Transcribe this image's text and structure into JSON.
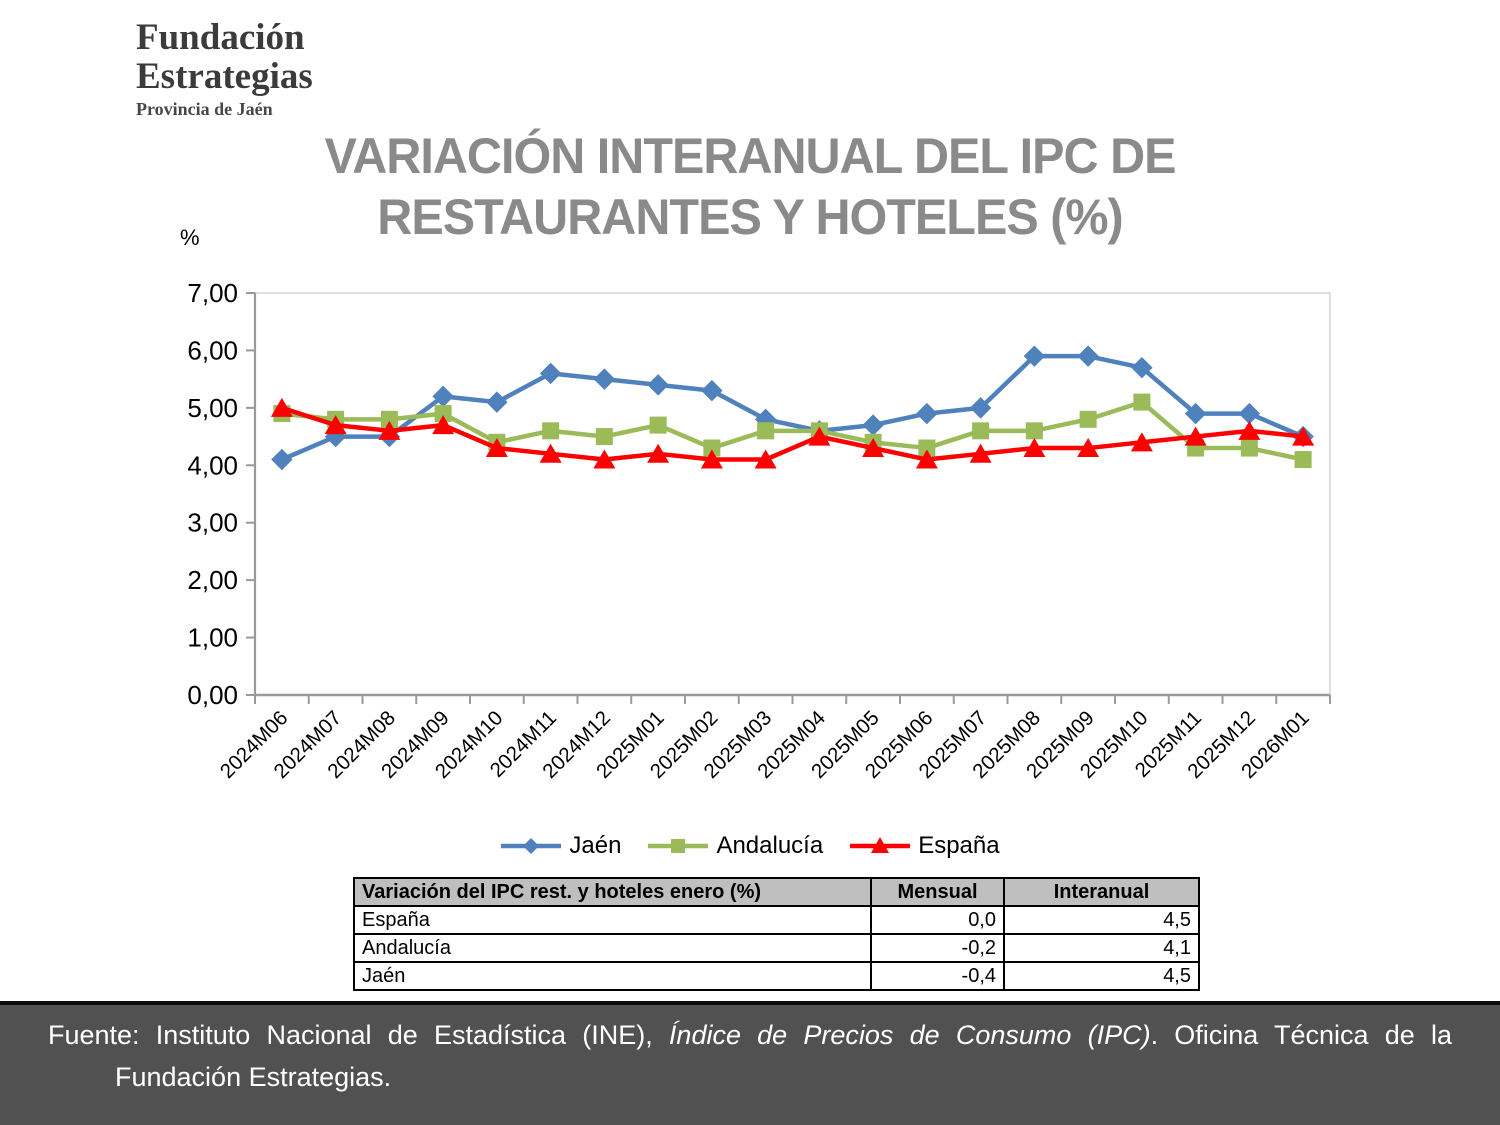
{
  "logo": {
    "line1": "Fundación",
    "line2": "Estrategias",
    "subtitle": "Provincia de Jaén",
    "colors": {
      "yellow": "#F2B113",
      "blue": "#1A5DA8",
      "teal": "#0C968E",
      "red": "#D7282F",
      "dark_red": "#BD2227",
      "purple": "#B7ABD5"
    }
  },
  "title": {
    "line1": "VARIACIÓN INTERANUAL DEL IPC DE",
    "line2": "RESTAURANTES Y HOTELES (%)"
  },
  "chart_data": {
    "type": "line",
    "title": "VARIACIÓN INTERANUAL DEL IPC DE RESTAURANTES Y HOTELES (%)",
    "ylabel": "%",
    "xlabel": "",
    "ylim": [
      0,
      7
    ],
    "y_ticks": [
      "7,00",
      "6,00",
      "5,00",
      "4,00",
      "3,00",
      "2,00",
      "1,00",
      "0,00"
    ],
    "grid": false,
    "legend_position": "bottom",
    "categories": [
      "2024M06",
      "2024M07",
      "2024M08",
      "2024M09",
      "2024M10",
      "2024M11",
      "2024M12",
      "2025M01",
      "2025M02",
      "2025M03",
      "2025M04",
      "2025M05",
      "2025M06",
      "2025M07",
      "2025M08",
      "2025M09",
      "2025M10",
      "2025M11",
      "2025M12",
      "2026M01"
    ],
    "series": [
      {
        "name": "Jaén",
        "color": "#4F81BD",
        "marker": "diamond",
        "values": [
          4.1,
          4.5,
          4.5,
          5.2,
          5.1,
          5.6,
          5.5,
          5.4,
          5.3,
          4.8,
          4.6,
          4.7,
          4.9,
          5.0,
          5.9,
          5.9,
          5.7,
          4.9,
          4.9,
          4.5
        ]
      },
      {
        "name": "Andalucía",
        "color": "#9BBB59",
        "marker": "square",
        "values": [
          4.9,
          4.8,
          4.8,
          4.9,
          4.4,
          4.6,
          4.5,
          4.7,
          4.3,
          4.6,
          4.6,
          4.4,
          4.3,
          4.6,
          4.6,
          4.8,
          5.1,
          4.3,
          4.3,
          4.1
        ]
      },
      {
        "name": "España",
        "color": "#FE0000",
        "marker": "triangle",
        "values": [
          5.0,
          4.7,
          4.6,
          4.7,
          4.3,
          4.2,
          4.1,
          4.2,
          4.1,
          4.1,
          4.5,
          4.3,
          4.1,
          4.2,
          4.3,
          4.3,
          4.4,
          4.5,
          4.6,
          4.5
        ]
      }
    ]
  },
  "table": {
    "header": [
      "Variación del IPC rest. y hoteles enero (%)",
      "Mensual",
      "Interanual"
    ],
    "rows": [
      [
        "España",
        "0,0",
        "4,5"
      ],
      [
        "Andalucía",
        "-0,2",
        "4,1"
      ],
      [
        "Jaén",
        "-0,4",
        "4,5"
      ]
    ]
  },
  "footer": {
    "prefix": "Fuente: Instituto Nacional de Estadística (INE), ",
    "italic": "Índice de Precios de Consumo (IPC)",
    "suffix": ". Oficina Técnica de la Fundación Estrategias."
  }
}
